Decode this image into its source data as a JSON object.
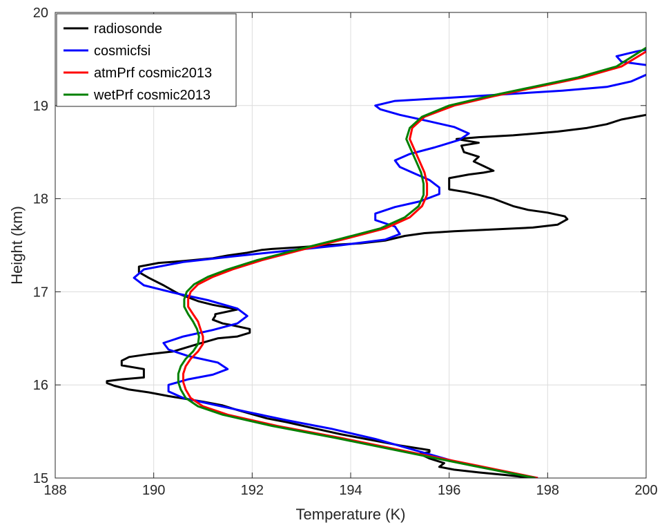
{
  "chart_data": {
    "type": "line",
    "title": "",
    "xlabel": "Temperature (K)",
    "ylabel": "Height (km)",
    "xlim": [
      188,
      200
    ],
    "ylim": [
      15,
      20
    ],
    "xticks": [
      "188",
      "190",
      "192",
      "194",
      "196",
      "198",
      "200"
    ],
    "yticks": [
      "15",
      "16",
      "17",
      "18",
      "19",
      "20"
    ],
    "grid": true,
    "legend_position": "top-left",
    "series": [
      {
        "name": "radiosonde",
        "color": "#000000",
        "points": [
          [
            197.7,
            15.0
          ],
          [
            197.2,
            15.03
          ],
          [
            196.6,
            15.06
          ],
          [
            196.1,
            15.09
          ],
          [
            195.8,
            15.12
          ],
          [
            195.9,
            15.16
          ],
          [
            195.6,
            15.21
          ],
          [
            195.4,
            15.26
          ],
          [
            195.6,
            15.28
          ],
          [
            195.6,
            15.3
          ],
          [
            195.0,
            15.35
          ],
          [
            194.3,
            15.42
          ],
          [
            193.8,
            15.47
          ],
          [
            193.2,
            15.54
          ],
          [
            192.7,
            15.6
          ],
          [
            192.3,
            15.64
          ],
          [
            192.1,
            15.67
          ],
          [
            191.7,
            15.73
          ],
          [
            191.4,
            15.78
          ],
          [
            191.0,
            15.82
          ],
          [
            190.3,
            15.88
          ],
          [
            189.9,
            15.92
          ],
          [
            189.5,
            15.95
          ],
          [
            189.2,
            15.99
          ],
          [
            189.05,
            16.02
          ],
          [
            189.05,
            16.04
          ],
          [
            189.35,
            16.06
          ],
          [
            189.8,
            16.08
          ],
          [
            189.8,
            16.17
          ],
          [
            189.35,
            16.21
          ],
          [
            189.35,
            16.26
          ],
          [
            189.5,
            16.3
          ],
          [
            189.9,
            16.33
          ],
          [
            190.4,
            16.36
          ],
          [
            190.9,
            16.44
          ],
          [
            191.3,
            16.5
          ],
          [
            191.7,
            16.52
          ],
          [
            191.95,
            16.56
          ],
          [
            191.95,
            16.6
          ],
          [
            191.6,
            16.64
          ],
          [
            191.4,
            16.66
          ],
          [
            191.2,
            16.7
          ],
          [
            191.25,
            16.74
          ],
          [
            191.25,
            16.76
          ],
          [
            191.7,
            16.81
          ],
          [
            191.2,
            16.86
          ],
          [
            190.9,
            16.9
          ],
          [
            190.5,
            16.98
          ],
          [
            190.2,
            17.07
          ],
          [
            189.9,
            17.15
          ],
          [
            189.7,
            17.21
          ],
          [
            189.7,
            17.27
          ],
          [
            190.1,
            17.31
          ],
          [
            190.6,
            17.33
          ],
          [
            191.2,
            17.36
          ],
          [
            191.5,
            17.39
          ],
          [
            191.9,
            17.42
          ],
          [
            192.2,
            17.45
          ],
          [
            192.4,
            17.46
          ],
          [
            193.0,
            17.48
          ],
          [
            193.5,
            17.5
          ],
          [
            194.2,
            17.52
          ],
          [
            194.7,
            17.55
          ],
          [
            195.1,
            17.6
          ],
          [
            195.5,
            17.63
          ],
          [
            196.1,
            17.65
          ],
          [
            196.9,
            17.67
          ],
          [
            197.7,
            17.69
          ],
          [
            198.2,
            17.72
          ],
          [
            198.4,
            17.78
          ],
          [
            198.35,
            17.81
          ],
          [
            198.0,
            17.85
          ],
          [
            197.6,
            17.88
          ],
          [
            197.3,
            17.92
          ],
          [
            197.1,
            17.96
          ],
          [
            196.9,
            18.0
          ],
          [
            196.6,
            18.04
          ],
          [
            196.35,
            18.07
          ],
          [
            196.0,
            18.1
          ],
          [
            196.0,
            18.15
          ],
          [
            196.0,
            18.22
          ],
          [
            196.4,
            18.26
          ],
          [
            196.7,
            18.28
          ],
          [
            196.9,
            18.3
          ],
          [
            196.7,
            18.35
          ],
          [
            196.5,
            18.4
          ],
          [
            196.6,
            18.45
          ],
          [
            196.3,
            18.5
          ],
          [
            196.25,
            18.57
          ],
          [
            196.6,
            18.6
          ],
          [
            196.15,
            18.64
          ],
          [
            196.6,
            18.66
          ],
          [
            197.3,
            18.68
          ],
          [
            198.2,
            18.72
          ],
          [
            198.8,
            18.76
          ],
          [
            199.2,
            18.8
          ],
          [
            199.5,
            18.85
          ],
          [
            199.8,
            18.88
          ],
          [
            200.0,
            18.9
          ]
        ]
      },
      {
        "name": "cosmicfsi",
        "color": "#0000ff",
        "points": [
          [
            197.8,
            15.0
          ],
          [
            197.0,
            15.08
          ],
          [
            196.1,
            15.18
          ],
          [
            195.3,
            15.3
          ],
          [
            194.5,
            15.42
          ],
          [
            193.6,
            15.53
          ],
          [
            192.7,
            15.62
          ],
          [
            191.9,
            15.71
          ],
          [
            191.2,
            15.79
          ],
          [
            190.6,
            15.86
          ],
          [
            190.3,
            15.93
          ],
          [
            190.3,
            16.0
          ],
          [
            190.7,
            16.06
          ],
          [
            191.2,
            16.11
          ],
          [
            191.5,
            16.17
          ],
          [
            191.3,
            16.24
          ],
          [
            190.7,
            16.31
          ],
          [
            190.3,
            16.38
          ],
          [
            190.2,
            16.45
          ],
          [
            190.6,
            16.52
          ],
          [
            191.2,
            16.59
          ],
          [
            191.7,
            16.66
          ],
          [
            191.9,
            16.74
          ],
          [
            191.7,
            16.82
          ],
          [
            191.1,
            16.91
          ],
          [
            190.4,
            16.99
          ],
          [
            189.8,
            17.07
          ],
          [
            189.6,
            17.15
          ],
          [
            189.8,
            17.24
          ],
          [
            190.6,
            17.32
          ],
          [
            191.6,
            17.38
          ],
          [
            192.7,
            17.44
          ],
          [
            193.8,
            17.5
          ],
          [
            194.7,
            17.56
          ],
          [
            195.0,
            17.62
          ],
          [
            194.9,
            17.7
          ],
          [
            194.5,
            17.77
          ],
          [
            194.5,
            17.84
          ],
          [
            194.9,
            17.91
          ],
          [
            195.4,
            17.97
          ],
          [
            195.8,
            18.05
          ],
          [
            195.8,
            18.12
          ],
          [
            195.6,
            18.2
          ],
          [
            195.3,
            18.27
          ],
          [
            195.0,
            18.34
          ],
          [
            194.9,
            18.41
          ],
          [
            195.2,
            18.48
          ],
          [
            195.7,
            18.55
          ],
          [
            196.2,
            18.63
          ],
          [
            196.4,
            18.7
          ],
          [
            196.1,
            18.77
          ],
          [
            195.6,
            18.83
          ],
          [
            195.0,
            18.9
          ],
          [
            194.6,
            18.96
          ],
          [
            194.5,
            19.0
          ],
          [
            194.9,
            19.05
          ],
          [
            195.9,
            19.08
          ],
          [
            197.1,
            19.12
          ],
          [
            198.3,
            19.16
          ],
          [
            199.2,
            19.2
          ],
          [
            199.7,
            19.26
          ],
          [
            200.0,
            19.33
          ],
          [
            200.5,
            19.4
          ],
          [
            199.5,
            19.47
          ],
          [
            199.4,
            19.53
          ],
          [
            199.8,
            19.58
          ],
          [
            200.0,
            19.6
          ]
        ]
      },
      {
        "name": "atmPrf cosmic2013",
        "color": "#ff0000",
        "points": [
          [
            197.8,
            15.0
          ],
          [
            196.6,
            15.13
          ],
          [
            195.2,
            15.28
          ],
          [
            193.8,
            15.43
          ],
          [
            192.5,
            15.56
          ],
          [
            191.5,
            15.68
          ],
          [
            191.0,
            15.77
          ],
          [
            190.75,
            15.86
          ],
          [
            190.65,
            15.95
          ],
          [
            190.6,
            16.03
          ],
          [
            190.6,
            16.12
          ],
          [
            190.65,
            16.2
          ],
          [
            190.75,
            16.28
          ],
          [
            190.9,
            16.36
          ],
          [
            191.0,
            16.44
          ],
          [
            191.0,
            16.52
          ],
          [
            190.95,
            16.6
          ],
          [
            190.9,
            16.68
          ],
          [
            190.8,
            16.76
          ],
          [
            190.7,
            16.84
          ],
          [
            190.7,
            16.92
          ],
          [
            190.75,
            17.0
          ],
          [
            190.9,
            17.08
          ],
          [
            191.2,
            17.16
          ],
          [
            191.6,
            17.24
          ],
          [
            192.2,
            17.34
          ],
          [
            193.0,
            17.45
          ],
          [
            193.9,
            17.57
          ],
          [
            194.7,
            17.68
          ],
          [
            195.2,
            17.8
          ],
          [
            195.45,
            17.92
          ],
          [
            195.55,
            18.04
          ],
          [
            195.55,
            18.16
          ],
          [
            195.5,
            18.28
          ],
          [
            195.4,
            18.4
          ],
          [
            195.3,
            18.52
          ],
          [
            195.2,
            18.64
          ],
          [
            195.25,
            18.76
          ],
          [
            195.5,
            18.88
          ],
          [
            196.1,
            19.0
          ],
          [
            196.9,
            19.1
          ],
          [
            197.8,
            19.2
          ],
          [
            198.7,
            19.3
          ],
          [
            199.5,
            19.42
          ],
          [
            200.0,
            19.58
          ]
        ]
      },
      {
        "name": "wetPrf cosmic2013",
        "color": "#008000",
        "points": [
          [
            197.75,
            15.0
          ],
          [
            196.5,
            15.13
          ],
          [
            195.1,
            15.28
          ],
          [
            193.7,
            15.43
          ],
          [
            192.4,
            15.56
          ],
          [
            191.4,
            15.68
          ],
          [
            190.9,
            15.77
          ],
          [
            190.65,
            15.86
          ],
          [
            190.55,
            15.95
          ],
          [
            190.5,
            16.03
          ],
          [
            190.5,
            16.12
          ],
          [
            190.55,
            16.2
          ],
          [
            190.65,
            16.28
          ],
          [
            190.8,
            16.36
          ],
          [
            190.9,
            16.44
          ],
          [
            190.92,
            16.52
          ],
          [
            190.88,
            16.6
          ],
          [
            190.8,
            16.68
          ],
          [
            190.7,
            16.76
          ],
          [
            190.62,
            16.84
          ],
          [
            190.62,
            16.92
          ],
          [
            190.67,
            17.0
          ],
          [
            190.82,
            17.08
          ],
          [
            191.1,
            17.16
          ],
          [
            191.5,
            17.24
          ],
          [
            192.1,
            17.34
          ],
          [
            192.9,
            17.45
          ],
          [
            193.8,
            17.57
          ],
          [
            194.6,
            17.68
          ],
          [
            195.1,
            17.8
          ],
          [
            195.38,
            17.92
          ],
          [
            195.48,
            18.04
          ],
          [
            195.48,
            18.16
          ],
          [
            195.43,
            18.28
          ],
          [
            195.33,
            18.4
          ],
          [
            195.23,
            18.52
          ],
          [
            195.13,
            18.64
          ],
          [
            195.2,
            18.76
          ],
          [
            195.45,
            18.88
          ],
          [
            196.0,
            19.0
          ],
          [
            196.8,
            19.1
          ],
          [
            197.7,
            19.2
          ],
          [
            198.6,
            19.3
          ],
          [
            199.4,
            19.42
          ],
          [
            200.0,
            19.62
          ]
        ]
      }
    ]
  }
}
